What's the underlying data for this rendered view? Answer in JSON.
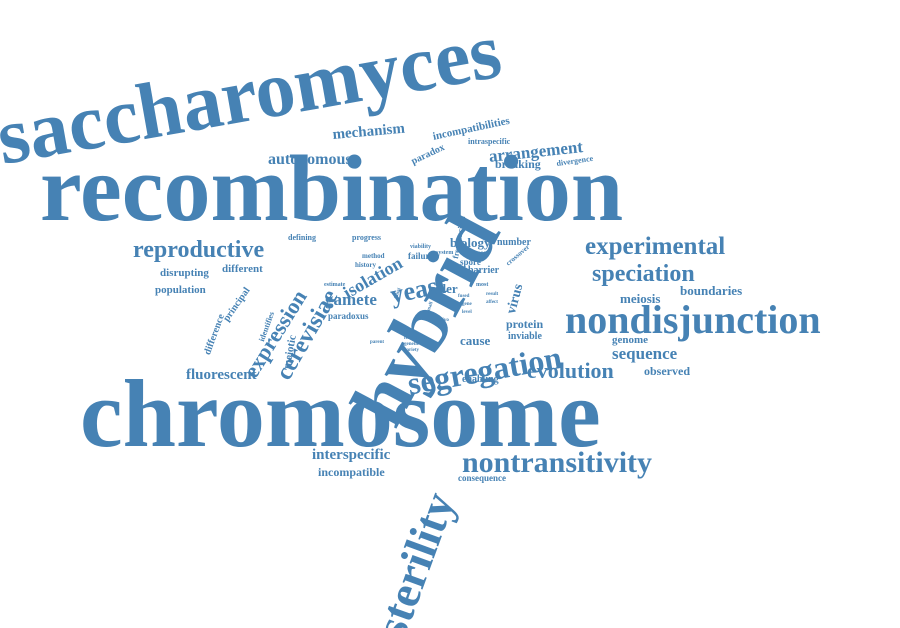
{
  "color": "#4682b4",
  "words": {
    "saccharomyces": "saccharomyces",
    "recombination": "recombination",
    "chromosome": "chromosome",
    "hybrid": "hybrid",
    "sterility": "sterility",
    "nondisjunction": "nondisjunction",
    "nontransitivity": "nontransitivity",
    "segregation": "segregation",
    "experimental": "experimental",
    "speciation": "speciation",
    "reproductive": "reproductive",
    "evolution": "evolution",
    "cerevisiae": "cerevisiae",
    "expression": "expression",
    "yeast": "yeast",
    "isolation": "isolation",
    "arrangement": "arrangement",
    "mechanism": "mechanism",
    "autonomous": "autonomous",
    "incompatibilities": "incompatibilities",
    "paradox": "paradox",
    "intraspecific": "intraspecific",
    "breaking": "breaking",
    "divergence": "divergence",
    "frequencies": "frequencies",
    "biology": "biology",
    "number": "number",
    "defining": "defining",
    "progress": "progress",
    "different": "different",
    "disrupting": "disrupting",
    "population": "population",
    "principal": "principal",
    "difference": "difference",
    "identifies": "identifies",
    "meiotic": "meiotic",
    "paradoxus": "paradoxus",
    "gamete": "gamete",
    "killer": "killer",
    "barrier": "barrier",
    "spore": "spore",
    "failure": "failure",
    "increase": "increase",
    "crossover": "crossover",
    "method": "method",
    "history": "history",
    "estimate": "estimate",
    "virus": "virus",
    "protein": "protein",
    "cause": "cause",
    "inviable": "inviable",
    "meiosis": "meiosis",
    "boundaries": "boundaries",
    "genome": "genome",
    "sequence": "sequence",
    "observed": "observed",
    "enabling": "enabling",
    "fluorescent": "fluorescent",
    "interspecific": "interspecific",
    "incompatible": "incompatible",
    "consequence": "consequence",
    "viability": "viability",
    "system": "system",
    "most": "most",
    "result": "result",
    "affect": "affect",
    "sterile": "sterile",
    "fertility": "fertility",
    "genetic": "genetic",
    "variety": "variety",
    "parent": "parent",
    "vivo": "vivo",
    "level": "level",
    "gene": "gene",
    "fused": "fused",
    "small": "small",
    "fungi": "fungi"
  }
}
